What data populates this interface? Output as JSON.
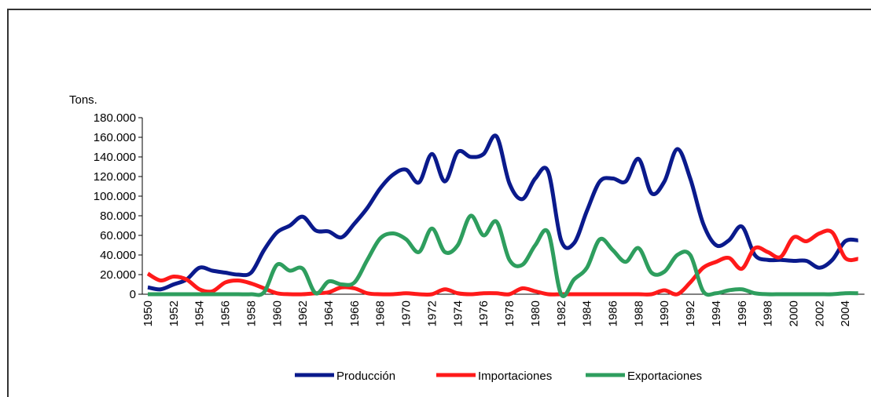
{
  "chart_data": {
    "type": "line",
    "y_label": "Tons.",
    "categories": [
      "1950",
      null,
      "1952",
      null,
      "1954",
      null,
      "1956",
      null,
      "1958",
      null,
      "1960",
      null,
      "1962",
      null,
      "1964",
      null,
      "1966",
      null,
      "1968",
      null,
      "1970",
      null,
      "1972",
      null,
      "1974",
      null,
      "1976",
      null,
      "1978",
      null,
      "1980",
      null,
      "1982",
      null,
      "1984",
      null,
      "1986",
      null,
      "1988",
      null,
      "1990",
      null,
      "1992",
      null,
      "1994",
      null,
      "1996",
      null,
      "1998",
      null,
      "2000",
      null,
      "2002",
      null,
      "2004",
      null
    ],
    "series": [
      {
        "name": "Producción",
        "color": "#0a1a8c",
        "values": [
          7000,
          5000,
          10000,
          15000,
          27000,
          24000,
          22000,
          20000,
          22000,
          45000,
          63000,
          70000,
          79000,
          65000,
          64000,
          58000,
          72000,
          88000,
          108000,
          122000,
          127000,
          114000,
          143000,
          115000,
          145000,
          140000,
          143000,
          161000,
          113000,
          97000,
          118000,
          125000,
          55000,
          52000,
          85000,
          115000,
          118000,
          115000,
          138000,
          103000,
          115000,
          148000,
          118000,
          72000,
          50000,
          55000,
          69000,
          40000,
          35000,
          35000,
          34000,
          34000,
          27000,
          35000,
          54000,
          55000
        ]
      },
      {
        "name": "Importaciones",
        "color": "#ff1a1a",
        "values": [
          21000,
          14000,
          18000,
          15000,
          5000,
          3000,
          12000,
          14000,
          11000,
          6000,
          1000,
          0,
          0,
          1000,
          2000,
          7000,
          6000,
          1000,
          0,
          0,
          1000,
          0,
          0,
          5000,
          1000,
          0,
          1000,
          1000,
          0,
          6000,
          3000,
          0,
          0,
          0,
          0,
          0,
          0,
          0,
          0,
          0,
          4000,
          0,
          12000,
          27000,
          33000,
          37000,
          26000,
          47000,
          43000,
          38000,
          58000,
          54000,
          62000,
          63000,
          37000,
          36000
        ]
      },
      {
        "name": "Exportaciones",
        "color": "#2e9e5e",
        "values": [
          0,
          0,
          0,
          0,
          0,
          0,
          0,
          0,
          0,
          2000,
          30000,
          24000,
          26000,
          1000,
          13000,
          10000,
          12000,
          35000,
          57000,
          62000,
          56000,
          43000,
          67000,
          43000,
          50000,
          80000,
          60000,
          74000,
          35000,
          30000,
          50000,
          63000,
          0,
          15000,
          27000,
          56000,
          45000,
          33000,
          47000,
          22000,
          23000,
          40000,
          40000,
          3000,
          1000,
          4000,
          5000,
          1000,
          0,
          0,
          0,
          0,
          0,
          0,
          1000,
          1000
        ]
      }
    ],
    "ylim": [
      0,
      180000
    ],
    "yticks": [
      0,
      {
        "value": 20000,
        "label": "20.000"
      },
      {
        "value": 40000,
        "label": "40.000"
      },
      {
        "value": 60000,
        "label": "60.000"
      },
      {
        "value": 80000,
        "label": "80.000"
      },
      {
        "value": 100000,
        "label": "100.000"
      },
      {
        "value": 120000,
        "label": "120.000"
      },
      {
        "value": 140000,
        "label": "140.000"
      },
      {
        "value": 160000,
        "label": "160.000"
      },
      {
        "value": 180000,
        "label": "180.000"
      }
    ]
  }
}
